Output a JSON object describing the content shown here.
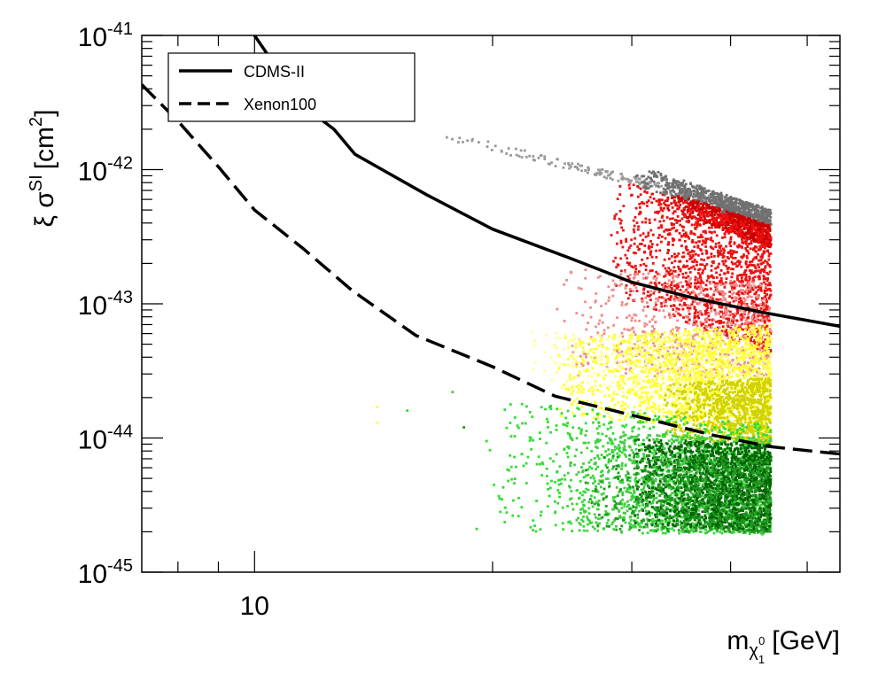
{
  "chart_data": {
    "type": "scatter",
    "title": "",
    "xlabel": {
      "main": "m",
      "sub": "χ",
      "sub_sub": "1",
      "sup": "0",
      "unit": "[GeV]"
    },
    "ylabel": {
      "main": "ξ σ",
      "sup": "SI",
      "unit_open": "[cm",
      "unit_sup": "2",
      "unit_close": "]"
    },
    "x_scale": "log",
    "y_scale": "log",
    "xlim": [
      7.2,
      55
    ],
    "ylim": [
      1e-45,
      1e-41
    ],
    "x_major_ticks": [
      {
        "value": 10,
        "label": "10"
      }
    ],
    "y_major_ticks": [
      {
        "value": 1e-45,
        "base": "10",
        "exp": "-45"
      },
      {
        "value": 1e-44,
        "base": "10",
        "exp": "-44"
      },
      {
        "value": 1e-43,
        "base": "10",
        "exp": "-43"
      },
      {
        "value": 1e-42,
        "base": "10",
        "exp": "-42"
      },
      {
        "value": 1e-41,
        "base": "10",
        "exp": "-41"
      }
    ],
    "legend": {
      "position": "top-left",
      "entries": [
        {
          "label": "CDMS-II",
          "style": "solid"
        },
        {
          "label": "Xenon100",
          "style": "dashed"
        }
      ]
    },
    "lines": [
      {
        "name": "CDMS-II",
        "style": "solid",
        "color": "#000000",
        "points": [
          [
            10.0,
            1e-41
          ],
          [
            11.5,
            3e-42
          ],
          [
            12.6,
            2e-42
          ],
          [
            13.4,
            1.3e-42
          ],
          [
            14.5,
            1e-42
          ],
          [
            16.5,
            6.5e-43
          ],
          [
            20.0,
            3.6e-43
          ],
          [
            25.0,
            2.2e-43
          ],
          [
            30.0,
            1.45e-43
          ],
          [
            36.0,
            1.1e-43
          ],
          [
            44.0,
            8.6e-44
          ],
          [
            55.0,
            6.8e-44
          ]
        ]
      },
      {
        "name": "Xenon100",
        "style": "dashed",
        "color": "#000000",
        "points": [
          [
            7.2,
            4.3e-42
          ],
          [
            8.0,
            2.3e-42
          ],
          [
            9.0,
            1.05e-42
          ],
          [
            10.0,
            5e-43
          ],
          [
            11.5,
            2.6e-43
          ],
          [
            13.3,
            1.25e-43
          ],
          [
            16.0,
            5.8e-44
          ],
          [
            20.0,
            3.4e-44
          ],
          [
            24.0,
            2.05e-44
          ],
          [
            30.0,
            1.48e-44
          ],
          [
            38.0,
            1.05e-44
          ],
          [
            45.0,
            8.6e-45
          ],
          [
            55.0,
            7.6e-45
          ]
        ]
      }
    ],
    "scatter_groups": [
      {
        "name": "grey-upper",
        "color": "#9a9a9a"
      },
      {
        "name": "grey-dark",
        "color": "#707070"
      },
      {
        "name": "red",
        "color": "#ee1111"
      },
      {
        "name": "red-dark",
        "color": "#cc0000"
      },
      {
        "name": "pink",
        "color": "#f08c8c"
      },
      {
        "name": "yellow",
        "color": "#ffff33"
      },
      {
        "name": "yellow-pale",
        "color": "#ffff99"
      },
      {
        "name": "olive",
        "color": "#d2d200"
      },
      {
        "name": "green-bright",
        "color": "#33dd33"
      },
      {
        "name": "green-light",
        "color": "#44cc44"
      },
      {
        "name": "green-dark",
        "color": "#006600"
      },
      {
        "name": "green-mid",
        "color": "#229922"
      }
    ],
    "scatter_cutoff_mass": 45
  },
  "colors": {
    "background": "#ffffff",
    "axis": "#000000"
  }
}
